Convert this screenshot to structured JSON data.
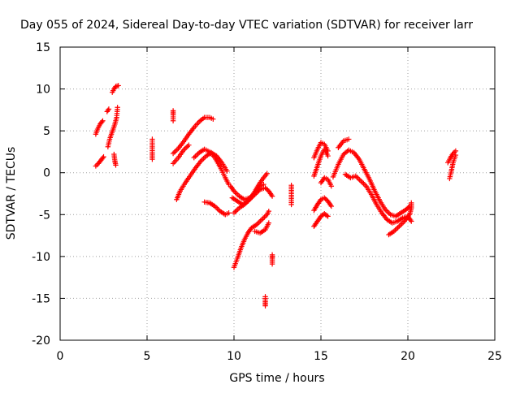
{
  "chart_data": {
    "type": "scatter",
    "title": "Day 055 of 2024, Sidereal Day-to-day VTEC variation (SDTVAR) for receiver larr",
    "xlabel": "GPS time / hours",
    "ylabel": "SDTVAR / TECUs",
    "xlim": [
      0,
      25
    ],
    "ylim": [
      -20,
      15
    ],
    "xticks": [
      0,
      5,
      10,
      15,
      20,
      25
    ],
    "yticks": [
      -20,
      -15,
      -10,
      -5,
      0,
      5,
      10,
      15
    ],
    "grid": true,
    "marker": "+",
    "color": "#ff0000",
    "segments": [
      [
        [
          2.05,
          0.8
        ],
        [
          2.2,
          1.1
        ],
        [
          2.35,
          1.5
        ],
        [
          2.5,
          1.9
        ]
      ],
      [
        [
          2.05,
          4.6
        ],
        [
          2.15,
          5.2
        ],
        [
          2.3,
          5.8
        ],
        [
          2.45,
          6.2
        ]
      ],
      [
        [
          2.75,
          3.1
        ],
        [
          2.85,
          4.0
        ],
        [
          2.95,
          4.6
        ],
        [
          3.05,
          5.2
        ],
        [
          3.15,
          5.8
        ],
        [
          3.25,
          6.6
        ],
        [
          3.3,
          7.8
        ]
      ],
      [
        [
          2.7,
          7.3
        ],
        [
          2.8,
          7.6
        ]
      ],
      [
        [
          3.0,
          9.6
        ],
        [
          3.1,
          10.0
        ],
        [
          3.2,
          10.3
        ],
        [
          3.35,
          10.4
        ]
      ],
      [
        [
          3.1,
          2.2
        ],
        [
          3.15,
          1.4
        ],
        [
          3.2,
          0.9
        ]
      ],
      [
        [
          5.3,
          4.0
        ],
        [
          5.3,
          2.4
        ],
        [
          5.3,
          1.6
        ]
      ],
      [
        [
          6.5,
          6.2
        ],
        [
          6.5,
          6.9
        ],
        [
          6.5,
          7.4
        ]
      ],
      [
        [
          6.5,
          2.3
        ],
        [
          6.8,
          2.9
        ],
        [
          7.1,
          3.7
        ],
        [
          7.4,
          4.6
        ],
        [
          7.7,
          5.4
        ],
        [
          8.0,
          6.1
        ],
        [
          8.3,
          6.6
        ],
        [
          8.6,
          6.6
        ],
        [
          8.8,
          6.4
        ]
      ],
      [
        [
          6.5,
          1.1
        ],
        [
          6.8,
          1.8
        ],
        [
          7.1,
          2.7
        ],
        [
          7.4,
          3.3
        ]
      ],
      [
        [
          6.7,
          -3.2
        ],
        [
          6.9,
          -2.2
        ],
        [
          7.2,
          -1.2
        ],
        [
          7.5,
          -0.3
        ],
        [
          7.8,
          0.6
        ],
        [
          8.1,
          1.4
        ],
        [
          8.4,
          2.0
        ],
        [
          8.7,
          2.4
        ],
        [
          9.0,
          2.0
        ],
        [
          9.3,
          1.2
        ],
        [
          9.6,
          0.2
        ]
      ],
      [
        [
          7.7,
          1.8
        ],
        [
          8.0,
          2.4
        ],
        [
          8.3,
          2.8
        ],
        [
          8.6,
          2.5
        ],
        [
          8.9,
          1.8
        ],
        [
          9.2,
          0.7
        ],
        [
          9.5,
          -0.6
        ],
        [
          9.7,
          -1.4
        ]
      ],
      [
        [
          8.3,
          -3.5
        ],
        [
          8.6,
          -3.6
        ],
        [
          8.9,
          -4.0
        ],
        [
          9.2,
          -4.6
        ],
        [
          9.5,
          -5.0
        ],
        [
          9.7,
          -4.8
        ]
      ],
      [
        [
          9.8,
          -1.6
        ],
        [
          10.0,
          -2.2
        ],
        [
          10.3,
          -2.8
        ],
        [
          10.6,
          -3.2
        ],
        [
          10.9,
          -3.0
        ],
        [
          11.2,
          -2.4
        ],
        [
          11.5,
          -1.6
        ],
        [
          11.7,
          -1.4
        ]
      ],
      [
        [
          9.9,
          -3.0
        ],
        [
          10.2,
          -3.4
        ],
        [
          10.5,
          -3.8
        ],
        [
          10.8,
          -3.4
        ],
        [
          11.1,
          -2.6
        ],
        [
          11.4,
          -1.5
        ],
        [
          11.7,
          -0.6
        ],
        [
          11.9,
          -0.1
        ]
      ],
      [
        [
          10.0,
          -4.8
        ],
        [
          10.3,
          -4.2
        ],
        [
          10.6,
          -3.8
        ],
        [
          10.9,
          -3.2
        ],
        [
          11.2,
          -2.6
        ],
        [
          11.5,
          -2.0
        ],
        [
          11.8,
          -1.8
        ],
        [
          12.0,
          -2.2
        ],
        [
          12.2,
          -2.8
        ]
      ],
      [
        [
          10.0,
          -11.3
        ],
        [
          10.2,
          -10.2
        ],
        [
          10.4,
          -9.0
        ],
        [
          10.6,
          -8.0
        ],
        [
          10.8,
          -7.2
        ],
        [
          11.0,
          -6.6
        ],
        [
          11.3,
          -6.2
        ],
        [
          11.6,
          -5.6
        ],
        [
          11.9,
          -5.0
        ],
        [
          12.0,
          -4.6
        ]
      ],
      [
        [
          11.2,
          -7.0
        ],
        [
          11.5,
          -7.2
        ],
        [
          11.8,
          -6.8
        ],
        [
          12.0,
          -6.0
        ]
      ],
      [
        [
          11.8,
          -14.8
        ],
        [
          11.8,
          -15.4
        ],
        [
          11.8,
          -15.9
        ]
      ],
      [
        [
          12.2,
          -9.8
        ],
        [
          12.2,
          -10.3
        ],
        [
          12.2,
          -10.9
        ]
      ],
      [
        [
          13.3,
          -1.5
        ],
        [
          13.3,
          -2.3
        ],
        [
          13.3,
          -3.1
        ],
        [
          13.3,
          -3.8
        ]
      ],
      [
        [
          14.6,
          1.8
        ],
        [
          14.8,
          2.8
        ],
        [
          15.0,
          3.6
        ],
        [
          15.2,
          3.4
        ],
        [
          15.4,
          2.6
        ]
      ],
      [
        [
          14.6,
          -0.4
        ],
        [
          14.8,
          0.8
        ],
        [
          15.0,
          2.0
        ],
        [
          15.2,
          2.8
        ],
        [
          15.4,
          2.0
        ]
      ],
      [
        [
          14.6,
          -4.5
        ],
        [
          14.8,
          -3.8
        ],
        [
          15.0,
          -3.2
        ],
        [
          15.2,
          -3.0
        ],
        [
          15.4,
          -3.4
        ],
        [
          15.6,
          -4.0
        ]
      ],
      [
        [
          14.6,
          -6.4
        ],
        [
          14.8,
          -5.8
        ],
        [
          15.0,
          -5.2
        ],
        [
          15.2,
          -4.9
        ],
        [
          15.4,
          -5.2
        ]
      ],
      [
        [
          15.0,
          -1.2
        ],
        [
          15.2,
          -0.6
        ],
        [
          15.4,
          -0.8
        ],
        [
          15.6,
          -1.6
        ]
      ],
      [
        [
          15.7,
          -0.5
        ],
        [
          16.0,
          1.0
        ],
        [
          16.3,
          2.2
        ],
        [
          16.6,
          2.7
        ],
        [
          16.9,
          2.4
        ],
        [
          17.2,
          1.6
        ],
        [
          17.5,
          0.4
        ],
        [
          17.8,
          -0.8
        ],
        [
          18.1,
          -2.2
        ],
        [
          18.4,
          -3.4
        ],
        [
          18.7,
          -4.4
        ],
        [
          19.0,
          -5.0
        ],
        [
          19.3,
          -5.2
        ],
        [
          19.6,
          -4.8
        ],
        [
          19.9,
          -4.4
        ],
        [
          20.1,
          -4.0
        ]
      ],
      [
        [
          16.0,
          3.0
        ],
        [
          16.3,
          3.8
        ],
        [
          16.6,
          4.0
        ]
      ],
      [
        [
          16.4,
          -0.2
        ],
        [
          16.7,
          -0.6
        ],
        [
          17.0,
          -0.4
        ],
        [
          17.3,
          -1.0
        ],
        [
          17.6,
          -1.6
        ],
        [
          17.9,
          -2.6
        ],
        [
          18.2,
          -3.8
        ],
        [
          18.5,
          -4.8
        ],
        [
          18.8,
          -5.6
        ],
        [
          19.1,
          -6.0
        ],
        [
          19.4,
          -5.8
        ],
        [
          19.7,
          -5.4
        ],
        [
          20.0,
          -5.2
        ],
        [
          20.2,
          -5.8
        ]
      ],
      [
        [
          18.9,
          -7.4
        ],
        [
          19.2,
          -7.0
        ],
        [
          19.5,
          -6.4
        ],
        [
          19.8,
          -5.8
        ],
        [
          20.1,
          -5.0
        ],
        [
          20.2,
          -4.2
        ],
        [
          20.2,
          -3.6
        ]
      ],
      [
        [
          22.4,
          -0.7
        ],
        [
          22.5,
          0.2
        ],
        [
          22.6,
          1.2
        ],
        [
          22.75,
          2.1
        ]
      ],
      [
        [
          22.3,
          1.2
        ],
        [
          22.45,
          1.8
        ],
        [
          22.6,
          2.3
        ],
        [
          22.75,
          2.6
        ]
      ]
    ]
  }
}
